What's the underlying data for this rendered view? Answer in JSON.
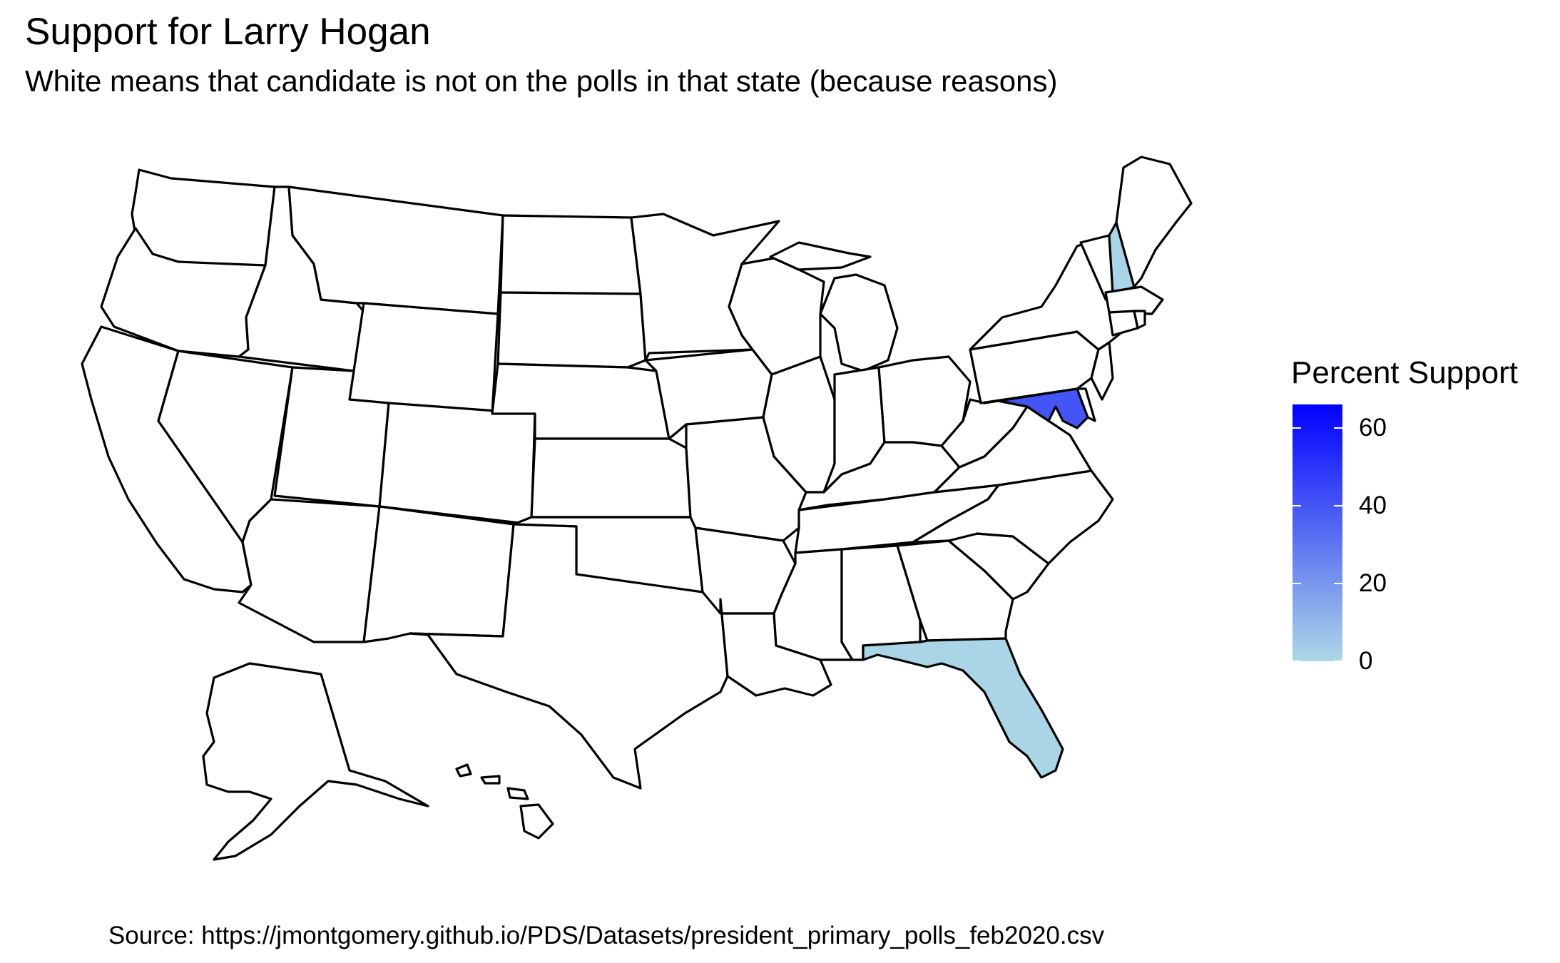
{
  "chart_data": {
    "type": "choropleth",
    "title": "Support for Larry Hogan",
    "subtitle": "White means that candidate is not on the polls in that state (because reasons)",
    "caption": "Source: https://jmontgomery.github.io/PDS/Datasets/president_primary_polls_feb2020.csv",
    "legend": {
      "title": "Percent Support",
      "placement": "right",
      "scale": {
        "min": 0,
        "max": 66,
        "low_color": "#ADD8E6",
        "high_color": "#0000FF"
      },
      "ticks": [
        {
          "value": 60,
          "label": "60"
        },
        {
          "value": 40,
          "label": "40"
        },
        {
          "value": 20,
          "label": "20"
        },
        {
          "value": 0,
          "label": "0"
        }
      ]
    },
    "no_data_color": "#FFFFFF",
    "states": [
      {
        "name": "Maryland",
        "value": 40
      },
      {
        "name": "New Hampshire",
        "value": 1
      },
      {
        "name": "Florida",
        "value": 1
      }
    ]
  }
}
